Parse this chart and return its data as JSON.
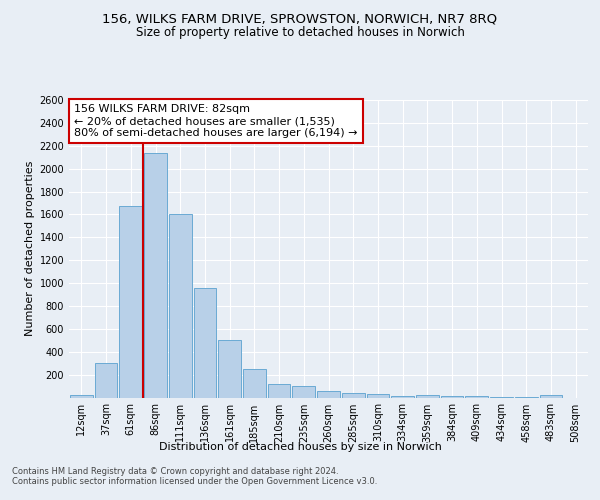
{
  "title1": "156, WILKS FARM DRIVE, SPROWSTON, NORWICH, NR7 8RQ",
  "title2": "Size of property relative to detached houses in Norwich",
  "xlabel": "Distribution of detached houses by size in Norwich",
  "ylabel": "Number of detached properties",
  "categories": [
    "12sqm",
    "37sqm",
    "61sqm",
    "86sqm",
    "111sqm",
    "136sqm",
    "161sqm",
    "185sqm",
    "210sqm",
    "235sqm",
    "260sqm",
    "285sqm",
    "310sqm",
    "334sqm",
    "359sqm",
    "384sqm",
    "409sqm",
    "434sqm",
    "458sqm",
    "483sqm",
    "508sqm"
  ],
  "values": [
    25,
    300,
    1670,
    2140,
    1600,
    960,
    505,
    250,
    120,
    100,
    55,
    35,
    30,
    10,
    25,
    10,
    15,
    5,
    5,
    20,
    0
  ],
  "bar_color": "#b8d0e8",
  "bar_edgecolor": "#6aaad4",
  "vline_index": 3,
  "vline_color": "#cc0000",
  "annotation_line1": "156 WILKS FARM DRIVE: 82sqm",
  "annotation_line2": "← 20% of detached houses are smaller (1,535)",
  "annotation_line3": "80% of semi-detached houses are larger (6,194) →",
  "ylim_max": 2600,
  "yticks": [
    200,
    400,
    600,
    800,
    1000,
    1200,
    1400,
    1600,
    1800,
    2000,
    2200,
    2400,
    2600
  ],
  "footnote1": "Contains HM Land Registry data © Crown copyright and database right 2024.",
  "footnote2": "Contains public sector information licensed under the Open Government Licence v3.0.",
  "bg_color": "#e8eef5",
  "grid_color": "#ffffff",
  "title1_fontsize": 9.5,
  "title2_fontsize": 8.5,
  "annot_fontsize": 8,
  "axis_label_fontsize": 8,
  "tick_fontsize": 7,
  "footnote_fontsize": 6
}
